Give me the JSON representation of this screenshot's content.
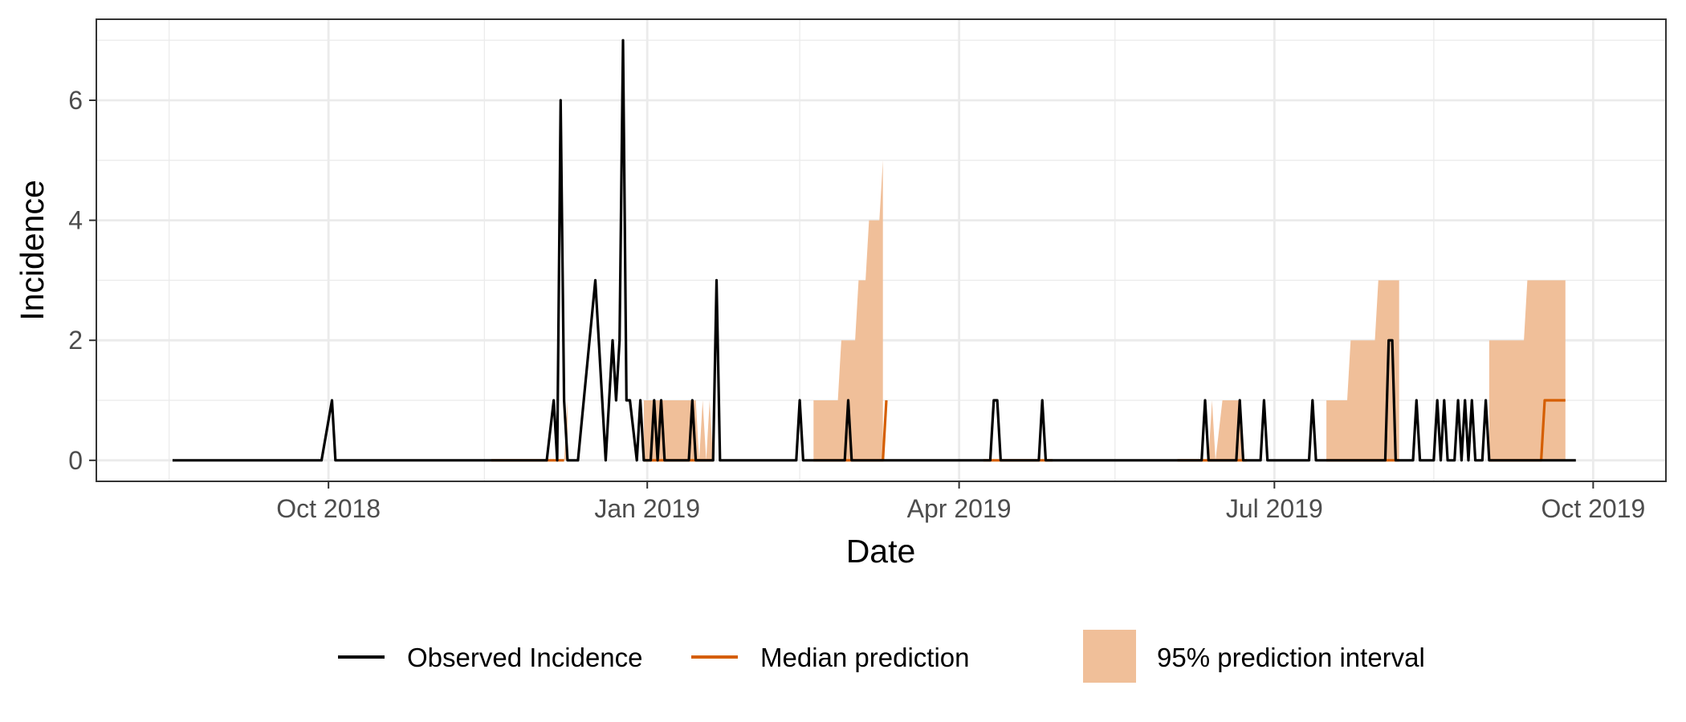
{
  "chart_data": {
    "type": "line",
    "xlabel": "Date",
    "ylabel": "Incidence",
    "x_tick_labels": [
      "Oct 2018",
      "Jan 2019",
      "Apr 2019",
      "Jul 2019",
      "Oct 2019"
    ],
    "x_tick_dates": [
      "2018-10-01",
      "2019-01-01",
      "2019-04-01",
      "2019-07-01",
      "2019-10-01"
    ],
    "x_minor_dates": [
      "2018-08-16",
      "2018-11-15",
      "2019-02-14",
      "2019-05-16",
      "2019-08-16"
    ],
    "y_tick_labels": [
      "0",
      "2",
      "4",
      "6"
    ],
    "y_ticks": [
      0,
      2,
      4,
      6
    ],
    "y_minor_ticks": [
      1,
      3,
      5,
      7
    ],
    "xlim": [
      "2018-07-26",
      "2019-10-22"
    ],
    "ylim": [
      -0.35,
      7.35
    ],
    "grid": true,
    "legend_position": "bottom",
    "colors": {
      "observed": "#000000",
      "median": "#d55e00",
      "interval": "#f0bf99"
    },
    "legend": [
      {
        "label": "Observed Incidence",
        "kind": "line",
        "color": "#000000"
      },
      {
        "label": "Median prediction",
        "kind": "line",
        "color": "#d55e00"
      },
      {
        "label": "95% prediction interval",
        "kind": "fill",
        "color": "#f0bf99"
      }
    ],
    "series": [
      {
        "name": "Observed Incidence",
        "points": [
          [
            "2018-08-17",
            0
          ],
          [
            "2018-09-29",
            0
          ],
          [
            "2018-10-02",
            1
          ],
          [
            "2018-10-03",
            0
          ],
          [
            "2018-12-03",
            0
          ],
          [
            "2018-12-05",
            1
          ],
          [
            "2018-12-06",
            0
          ],
          [
            "2018-12-07",
            6
          ],
          [
            "2018-12-08",
            1
          ],
          [
            "2018-12-09",
            0
          ],
          [
            "2018-12-12",
            0
          ],
          [
            "2018-12-17",
            3
          ],
          [
            "2018-12-20",
            0
          ],
          [
            "2018-12-22",
            2
          ],
          [
            "2018-12-23",
            1
          ],
          [
            "2018-12-24",
            2
          ],
          [
            "2018-12-25",
            7
          ],
          [
            "2018-12-26",
            1
          ],
          [
            "2018-12-27",
            1
          ],
          [
            "2018-12-29",
            0
          ],
          [
            "2018-12-30",
            1
          ],
          [
            "2018-12-31",
            0
          ],
          [
            "2019-01-02",
            0
          ],
          [
            "2019-01-03",
            1
          ],
          [
            "2019-01-04",
            0
          ],
          [
            "2019-01-05",
            1
          ],
          [
            "2019-01-06",
            0
          ],
          [
            "2019-01-13",
            0
          ],
          [
            "2019-01-14",
            1
          ],
          [
            "2019-01-15",
            0
          ],
          [
            "2019-01-20",
            0
          ],
          [
            "2019-01-21",
            3
          ],
          [
            "2019-01-22",
            0
          ],
          [
            "2019-02-13",
            0
          ],
          [
            "2019-02-14",
            1
          ],
          [
            "2019-02-15",
            0
          ],
          [
            "2019-02-27",
            0
          ],
          [
            "2019-02-28",
            1
          ],
          [
            "2019-03-01",
            0
          ],
          [
            "2019-04-10",
            0
          ],
          [
            "2019-04-11",
            1
          ],
          [
            "2019-04-12",
            1
          ],
          [
            "2019-04-13",
            0
          ],
          [
            "2019-04-24",
            0
          ],
          [
            "2019-04-25",
            1
          ],
          [
            "2019-04-26",
            0
          ],
          [
            "2019-06-10",
            0
          ],
          [
            "2019-06-11",
            1
          ],
          [
            "2019-06-12",
            0
          ],
          [
            "2019-06-20",
            0
          ],
          [
            "2019-06-21",
            1
          ],
          [
            "2019-06-22",
            0
          ],
          [
            "2019-06-27",
            0
          ],
          [
            "2019-06-28",
            1
          ],
          [
            "2019-06-29",
            0
          ],
          [
            "2019-07-11",
            0
          ],
          [
            "2019-07-12",
            1
          ],
          [
            "2019-07-13",
            0
          ],
          [
            "2019-08-02",
            0
          ],
          [
            "2019-08-03",
            2
          ],
          [
            "2019-08-04",
            2
          ],
          [
            "2019-08-05",
            0
          ],
          [
            "2019-08-10",
            0
          ],
          [
            "2019-08-11",
            1
          ],
          [
            "2019-08-12",
            0
          ],
          [
            "2019-08-16",
            0
          ],
          [
            "2019-08-17",
            1
          ],
          [
            "2019-08-18",
            0
          ],
          [
            "2019-08-19",
            1
          ],
          [
            "2019-08-20",
            0
          ],
          [
            "2019-08-22",
            0
          ],
          [
            "2019-08-23",
            1
          ],
          [
            "2019-08-24",
            0
          ],
          [
            "2019-08-25",
            1
          ],
          [
            "2019-08-26",
            0
          ],
          [
            "2019-08-27",
            1
          ],
          [
            "2019-08-28",
            0
          ],
          [
            "2019-08-30",
            0
          ],
          [
            "2019-08-31",
            1
          ],
          [
            "2019-09-01",
            0
          ],
          [
            "2019-09-26",
            0
          ]
        ]
      },
      {
        "name": "Median prediction",
        "segments": [
          [
            [
              "2018-11-17",
              0
            ],
            [
              "2018-12-08",
              0
            ]
          ],
          [
            [
              "2018-12-31",
              0
            ],
            [
              "2019-01-20",
              0
            ]
          ],
          [
            [
              "2019-02-18",
              0
            ],
            [
              "2019-03-10",
              0
            ],
            [
              "2019-03-11",
              1
            ]
          ],
          [
            [
              "2019-04-08",
              0
            ],
            [
              "2019-04-28",
              0
            ]
          ],
          [
            [
              "2019-06-03",
              0
            ],
            [
              "2019-06-23",
              0
            ]
          ],
          [
            [
              "2019-07-16",
              0
            ],
            [
              "2019-08-06",
              0
            ]
          ],
          [
            [
              "2019-09-01",
              0
            ],
            [
              "2019-09-16",
              0
            ],
            [
              "2019-09-17",
              1
            ],
            [
              "2019-09-23",
              1
            ]
          ]
        ]
      },
      {
        "name": "95% prediction interval",
        "bands": [
          [
            [
              "2018-12-08",
              0,
              0
            ],
            [
              "2018-12-09",
              0,
              1
            ]
          ],
          [
            [
              "2018-12-31",
              0,
              1
            ],
            [
              "2019-01-15",
              0,
              1
            ],
            [
              "2019-01-16",
              0,
              0
            ],
            [
              "2019-01-17",
              0,
              1
            ],
            [
              "2019-01-18",
              0,
              0
            ],
            [
              "2019-01-19",
              0,
              1
            ],
            [
              "2019-01-20",
              0,
              0
            ]
          ],
          [
            [
              "2019-02-18",
              0,
              1
            ],
            [
              "2019-02-25",
              0,
              1
            ],
            [
              "2019-02-26",
              0,
              2
            ],
            [
              "2019-03-02",
              0,
              2
            ],
            [
              "2019-03-03",
              0,
              3
            ],
            [
              "2019-03-05",
              0,
              3
            ],
            [
              "2019-03-06",
              0,
              4
            ],
            [
              "2019-03-09",
              0,
              4
            ],
            [
              "2019-03-10",
              0,
              5
            ]
          ],
          [
            [
              "2019-06-12",
              0,
              0
            ],
            [
              "2019-06-13",
              0,
              1
            ],
            [
              "2019-06-14",
              0,
              0
            ],
            [
              "2019-06-16",
              0,
              1
            ],
            [
              "2019-06-21",
              0,
              1
            ],
            [
              "2019-06-22",
              0,
              0
            ]
          ],
          [
            [
              "2019-07-16",
              0,
              1
            ],
            [
              "2019-07-22",
              0,
              1
            ],
            [
              "2019-07-23",
              0,
              2
            ],
            [
              "2019-07-30",
              0,
              2
            ],
            [
              "2019-07-31",
              0,
              3
            ],
            [
              "2019-08-06",
              0,
              3
            ]
          ],
          [
            [
              "2019-09-01",
              0,
              2
            ],
            [
              "2019-09-11",
              0,
              2
            ],
            [
              "2019-09-12",
              0,
              3
            ],
            [
              "2019-09-23",
              0,
              3
            ]
          ]
        ]
      }
    ]
  }
}
